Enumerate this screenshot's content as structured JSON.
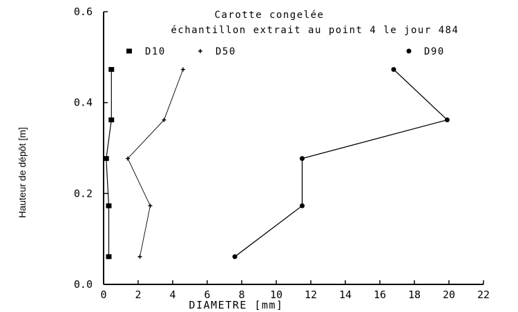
{
  "chart_data": {
    "type": "line",
    "title": "Carotte congelée",
    "subtitle": "échantillon extrait au point 4 le jour 484",
    "xlabel": "DIAMETRE [mm]",
    "ylabel": "Hauteur de dépôt [m]",
    "xlim": [
      0,
      22
    ],
    "ylim": [
      0,
      0.6
    ],
    "xticks": [
      "0",
      "2",
      "4",
      "6",
      "8",
      "10",
      "12",
      "14",
      "16",
      "18",
      "20",
      "22"
    ],
    "yticks": [
      "0.0",
      "0.2",
      "0.4",
      "0.6"
    ],
    "grid": false,
    "legend_position": "top",
    "series": [
      {
        "name": "D10",
        "marker": "filled-square",
        "points": [
          {
            "x": 0.45,
            "y": 0.473
          },
          {
            "x": 0.45,
            "y": 0.362
          },
          {
            "x": 0.15,
            "y": 0.277
          },
          {
            "x": 0.3,
            "y": 0.173
          },
          {
            "x": 0.3,
            "y": 0.061
          }
        ]
      },
      {
        "name": "D50",
        "marker": "plus",
        "points": [
          {
            "x": 4.6,
            "y": 0.473
          },
          {
            "x": 3.5,
            "y": 0.362
          },
          {
            "x": 1.4,
            "y": 0.277
          },
          {
            "x": 2.7,
            "y": 0.173
          },
          {
            "x": 2.1,
            "y": 0.061
          }
        ]
      },
      {
        "name": "D90",
        "marker": "filled-circle",
        "points": [
          {
            "x": 16.8,
            "y": 0.473
          },
          {
            "x": 19.9,
            "y": 0.362
          },
          {
            "x": 11.5,
            "y": 0.277
          },
          {
            "x": 11.5,
            "y": 0.173
          },
          {
            "x": 7.6,
            "y": 0.061
          }
        ]
      }
    ],
    "legend": [
      {
        "label": "D10",
        "marker": "filled-square"
      },
      {
        "label": "D50",
        "marker": "plus"
      },
      {
        "label": "D90",
        "marker": "filled-circle"
      }
    ]
  }
}
